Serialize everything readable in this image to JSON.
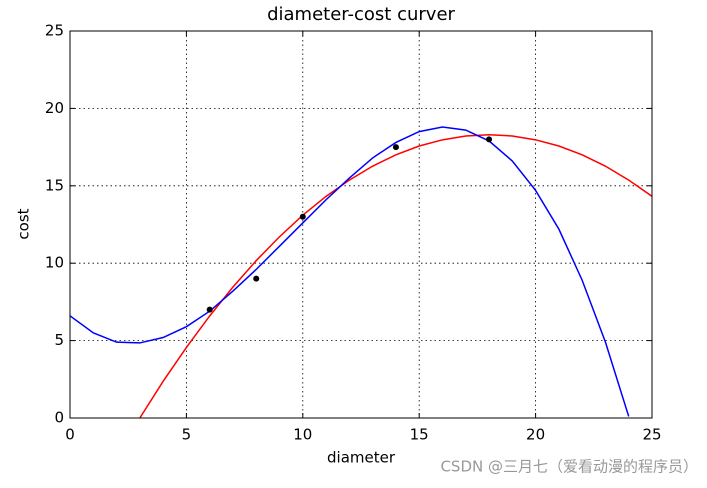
{
  "chart_data": {
    "type": "line",
    "title": "diameter-cost curver",
    "x_label": "diameter",
    "y_label": "cost",
    "xlim": [
      0,
      25
    ],
    "ylim": [
      0,
      25
    ],
    "xticks": [
      0,
      5,
      10,
      15,
      20,
      25
    ],
    "yticks": [
      0,
      5,
      10,
      15,
      20,
      25
    ],
    "grid": true,
    "series": [
      {
        "type": "line",
        "color": "#ff0000",
        "x": [
          3,
          4,
          5,
          6,
          7,
          8,
          9,
          10,
          11,
          12,
          13,
          14,
          15,
          16,
          17,
          18,
          19,
          20,
          21,
          22,
          23,
          24,
          25
        ],
        "values": [
          0,
          2.37,
          4.56,
          6.59,
          8.46,
          10.17,
          11.71,
          13.1,
          14.32,
          15.37,
          16.27,
          17.0,
          17.57,
          17.97,
          18.22,
          18.3,
          18.22,
          17.97,
          17.57,
          17.0,
          16.27,
          15.37,
          14.32
        ]
      },
      {
        "type": "line",
        "color": "#0000ff",
        "x": [
          0,
          1,
          2,
          3,
          4,
          5,
          6,
          7,
          8,
          9,
          10,
          11,
          12,
          13,
          14,
          15,
          16,
          17,
          18,
          19,
          20,
          21,
          22,
          23,
          24
        ],
        "values": [
          6.6,
          5.5,
          4.9,
          4.85,
          5.2,
          5.9,
          6.9,
          8.2,
          9.6,
          11.1,
          12.6,
          14.1,
          15.5,
          16.8,
          17.8,
          18.5,
          18.8,
          18.6,
          17.9,
          16.6,
          14.7,
          12.2,
          8.9,
          4.9,
          0.1
        ]
      },
      {
        "type": "scatter",
        "color": "#000000",
        "x": [
          6,
          8,
          10,
          14,
          18
        ],
        "values": [
          7,
          9,
          13,
          17.5,
          18
        ]
      }
    ],
    "watermark": "CSDN @三月七（爱看动漫的程序员）"
  }
}
